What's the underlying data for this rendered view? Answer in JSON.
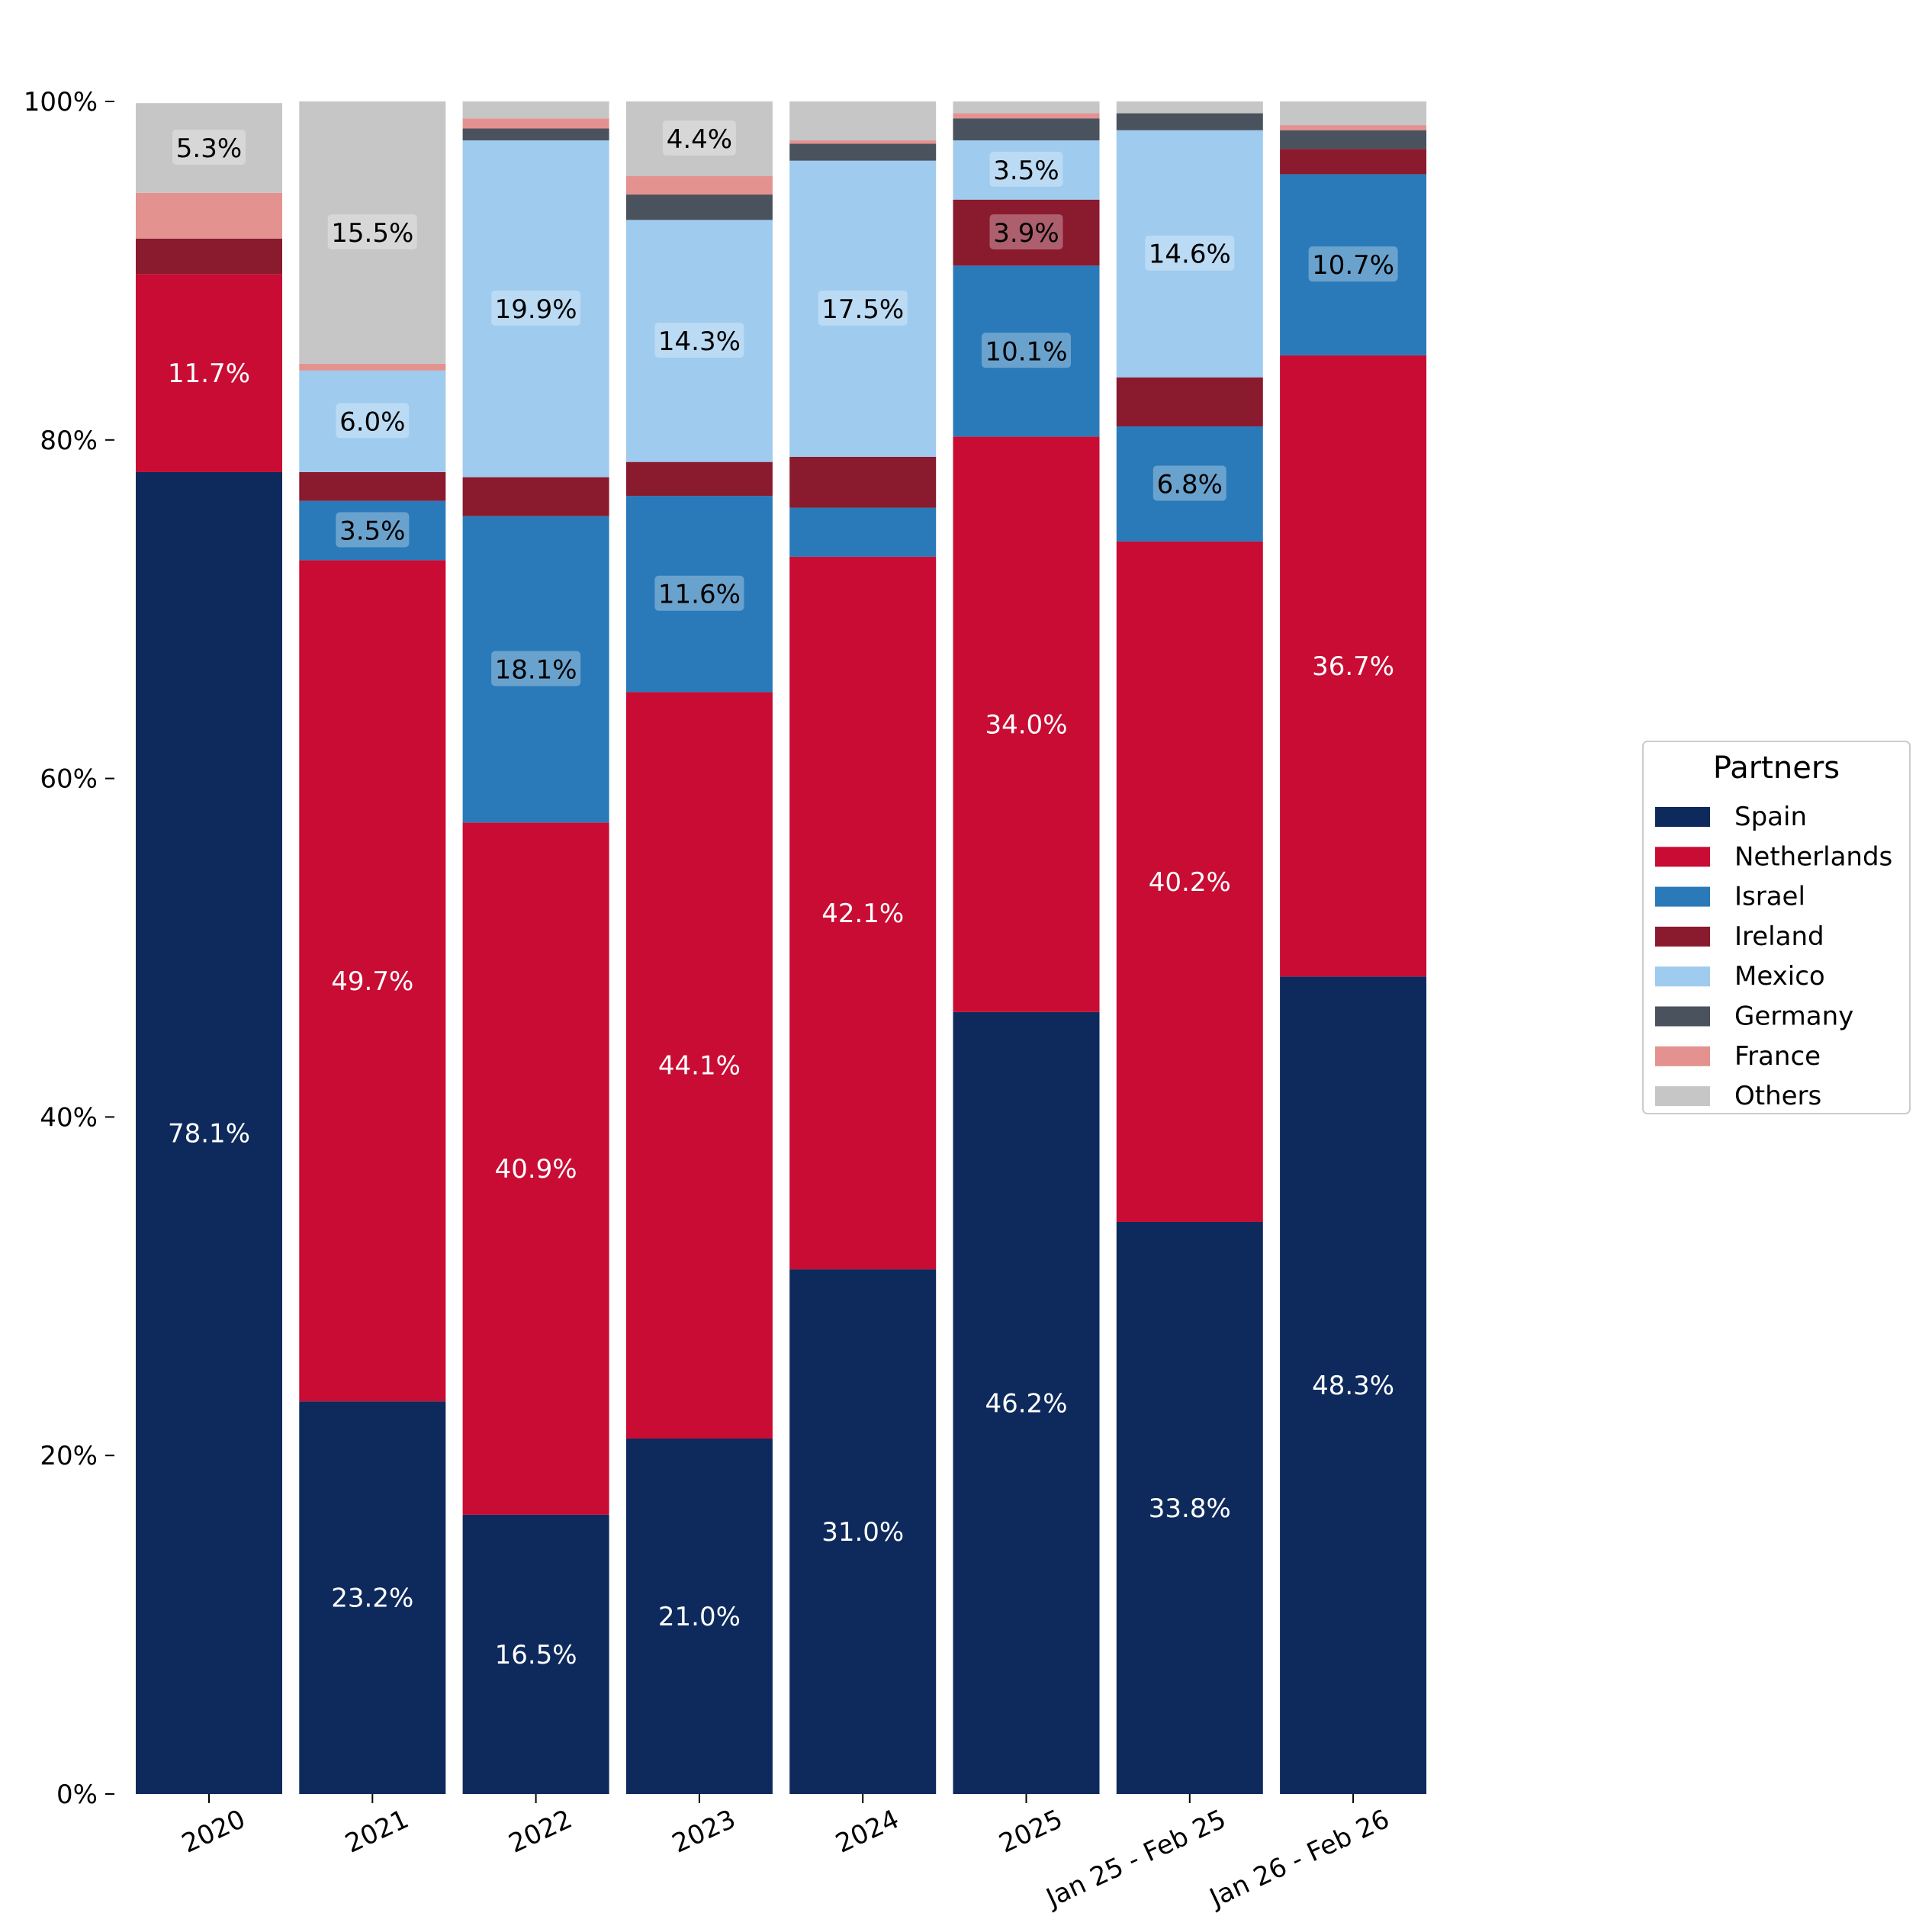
{
  "chart_data": {
    "type": "bar",
    "stacked": true,
    "title": "",
    "xlabel": "",
    "ylabel": "",
    "ylim": [
      0,
      100
    ],
    "yticks": [
      "0%",
      "20%",
      "40%",
      "60%",
      "80%",
      "100%"
    ],
    "categories": [
      "2020",
      "2021",
      "2022",
      "2023",
      "2024",
      "2025",
      "Jan 25 - Feb 25",
      "Jan 26 - Feb 26"
    ],
    "legend": {
      "title": "Partners",
      "placement": "right"
    },
    "series": [
      {
        "name": "Spain",
        "color": "#0e2a5c",
        "label_color": "#ffffff",
        "label_box": false,
        "values": [
          78.1,
          23.2,
          16.5,
          21.0,
          31.0,
          46.2,
          33.8,
          48.3
        ],
        "labels": [
          "78.1%",
          "23.2%",
          "16.5%",
          "21.0%",
          "31.0%",
          "46.2%",
          "33.8%",
          "48.3%"
        ]
      },
      {
        "name": "Netherlands",
        "color": "#c80c34",
        "label_color": "#ffffff",
        "label_box": false,
        "values": [
          11.7,
          49.7,
          40.9,
          44.1,
          42.1,
          34.0,
          40.2,
          36.7
        ],
        "labels": [
          "11.7%",
          "49.7%",
          "40.9%",
          "44.1%",
          "42.1%",
          "34.0%",
          "40.2%",
          "36.7%"
        ]
      },
      {
        "name": "Israel",
        "color": "#2a7ab9",
        "label_color": "#000000",
        "label_box": true,
        "values": [
          0.0,
          3.5,
          18.1,
          11.6,
          2.9,
          10.1,
          6.8,
          10.7
        ],
        "labels": [
          "",
          "3.5%",
          "18.1%",
          "11.6%",
          "",
          "10.1%",
          "6.8%",
          "10.7%"
        ]
      },
      {
        "name": "Ireland",
        "color": "#8a1a2e",
        "label_color": "#000000",
        "label_box": true,
        "values": [
          2.1,
          1.7,
          2.3,
          2.0,
          3.0,
          3.9,
          2.9,
          1.5
        ],
        "labels": [
          "",
          "",
          "",
          "",
          "",
          "3.9%",
          "",
          ""
        ]
      },
      {
        "name": "Mexico",
        "color": "#9ecbee",
        "label_color": "#000000",
        "label_box": true,
        "values": [
          0.0,
          6.0,
          19.9,
          14.3,
          17.5,
          3.5,
          14.6,
          0.0
        ],
        "labels": [
          "",
          "6.0%",
          "19.9%",
          "14.3%",
          "17.5%",
          "3.5%",
          "14.6%",
          ""
        ]
      },
      {
        "name": "Germany",
        "color": "#4a525e",
        "label_color": "#000000",
        "label_box": true,
        "values": [
          0.0,
          0.0,
          0.7,
          1.5,
          1.0,
          1.3,
          1.0,
          1.1
        ],
        "labels": [
          "",
          "",
          "",
          "",
          "",
          "",
          "",
          ""
        ]
      },
      {
        "name": "France",
        "color": "#e39290",
        "label_color": "#000000",
        "label_box": true,
        "values": [
          2.7,
          0.4,
          0.6,
          1.1,
          0.2,
          0.3,
          0.0,
          0.3
        ],
        "labels": [
          "",
          "",
          "",
          "",
          "",
          "",
          "",
          ""
        ]
      },
      {
        "name": "Others",
        "color": "#c6c6c6",
        "label_color": "#000000",
        "label_box": true,
        "values": [
          5.3,
          15.5,
          1.0,
          4.4,
          2.3,
          0.7,
          0.7,
          1.4
        ],
        "labels": [
          "5.3%",
          "15.5%",
          "",
          "4.4%",
          "",
          "",
          "",
          ""
        ]
      }
    ]
  }
}
